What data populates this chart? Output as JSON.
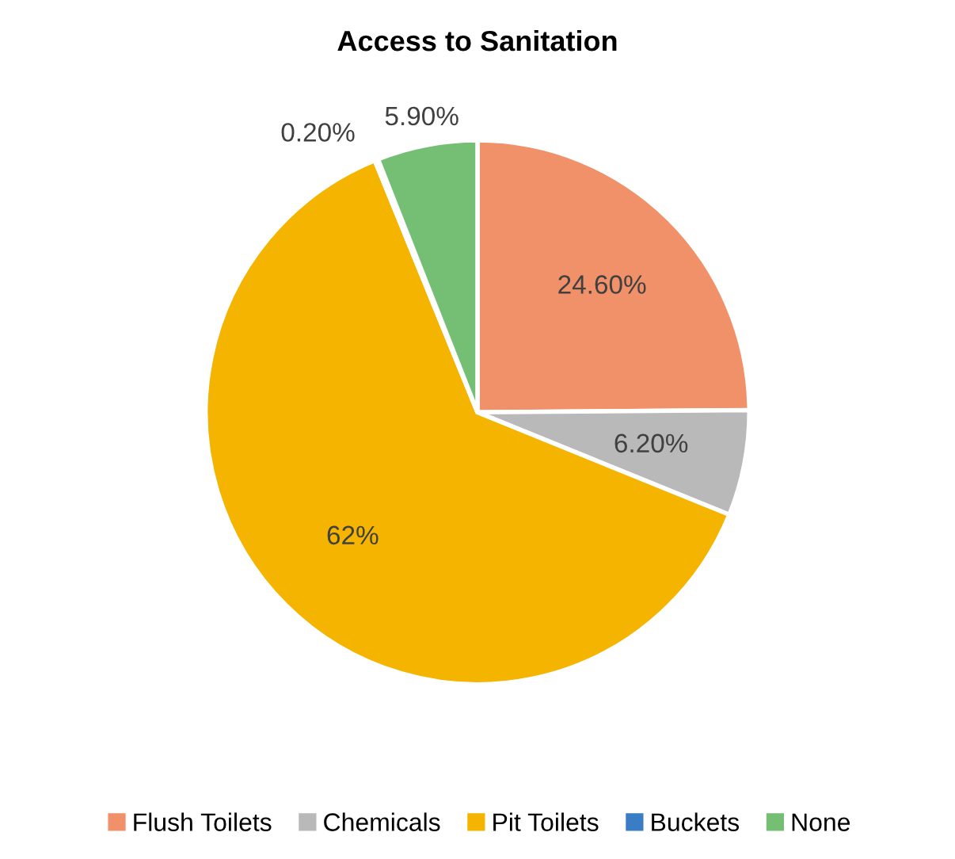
{
  "chart_data": {
    "type": "pie",
    "title": "Access to Sanitation",
    "categories": [
      "Flush Toilets",
      "Chemicals",
      "Pit Toilets",
      "Buckets",
      "None"
    ],
    "values": [
      24.6,
      6.2,
      62,
      0.2,
      5.9
    ],
    "value_labels": [
      "24.60%",
      "6.20%",
      "62%",
      "0.20%",
      "5.90%"
    ],
    "colors": [
      "#f0916a",
      "#b9b9b9",
      "#f4b400",
      "#3a7dc4",
      "#74bf74"
    ],
    "legend": "bottom"
  }
}
